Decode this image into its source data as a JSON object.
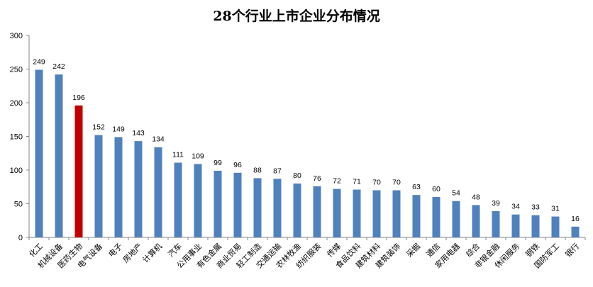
{
  "chart_data": {
    "type": "bar",
    "title": "28个行业上市企业分布情况",
    "xlabel": "",
    "ylabel": "",
    "ylim": [
      0,
      300
    ],
    "yticks": [
      0,
      50,
      100,
      150,
      200,
      250,
      300
    ],
    "grid": false,
    "legend": "none",
    "categories": [
      "化工",
      "机械设备",
      "医药生物",
      "电气设备",
      "电子",
      "房地产",
      "计算机",
      "汽车",
      "公用事业",
      "有色金属",
      "商业贸易",
      "轻工制造",
      "交通运输",
      "农林牧渔",
      "纺织服装",
      "传媒",
      "食品饮料",
      "建筑材料",
      "建筑装饰",
      "采掘",
      "通信",
      "家用电器",
      "综合",
      "非银金融",
      "休闲服务",
      "钢铁",
      "国防军工",
      "银行"
    ],
    "values": [
      249,
      242,
      196,
      152,
      149,
      143,
      134,
      111,
      109,
      99,
      96,
      88,
      87,
      80,
      76,
      72,
      71,
      70,
      70,
      63,
      60,
      54,
      48,
      39,
      34,
      33,
      31,
      16
    ],
    "bar_color": "#4F81BD",
    "highlight_color": "#C00000",
    "highlight_category": "医药生物"
  }
}
